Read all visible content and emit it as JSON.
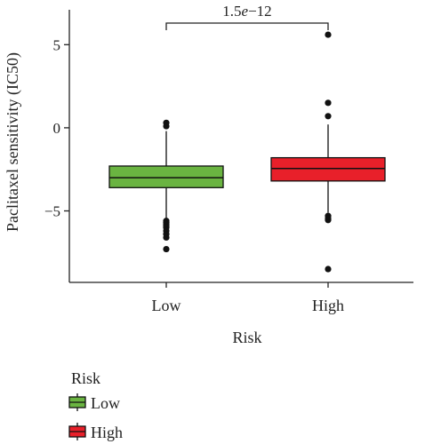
{
  "chart_data": {
    "type": "box",
    "title": "",
    "xlabel": "Risk",
    "ylabel": "Paclitaxel sensitivity (IC50)",
    "ylim": [
      -9.3,
      7.1
    ],
    "yticks": [
      5,
      0,
      -5
    ],
    "ytick_labels": [
      "5",
      "0",
      "−5"
    ],
    "categories": [
      "Low",
      "High"
    ],
    "series": [
      {
        "name": "Low",
        "color": "#6ab441",
        "q1": -3.6,
        "median": -3.0,
        "q3": -2.3,
        "whisker_low": -5.5,
        "whisker_high": -0.2,
        "outliers": [
          0.3,
          0.1,
          -5.6,
          -5.7,
          -5.8,
          -5.9,
          -6.0,
          -6.2,
          -6.4,
          -6.6,
          -7.3
        ]
      },
      {
        "name": "High",
        "color": "#e8202a",
        "q1": -3.2,
        "median": -2.45,
        "q3": -1.8,
        "whisker_low": -5.1,
        "whisker_high": 0.2,
        "outliers": [
          5.6,
          1.5,
          0.7,
          -5.3,
          -5.45,
          -5.55,
          -8.5
        ]
      }
    ],
    "annotation": {
      "text_prefix": "1.5",
      "text_e": "e",
      "text_suffix": "−12",
      "between": [
        "Low",
        "High"
      ]
    },
    "legend": {
      "title": "Risk",
      "placement": "bottom-left",
      "items": [
        {
          "label": "Low",
          "color": "#6ab441"
        },
        {
          "label": "High",
          "color": "#e8202a"
        }
      ]
    }
  }
}
